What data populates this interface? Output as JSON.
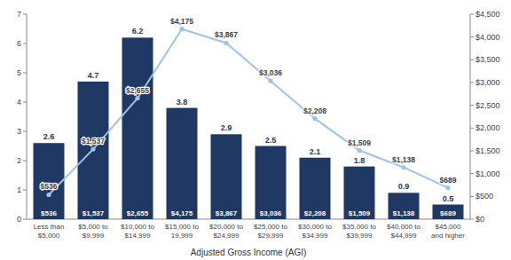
{
  "chart_data": {
    "type": "bar",
    "xlabel": "Adjusted Gross Income (AGI)",
    "categories": [
      "Less than\n$5,000",
      "$5,000 to\n$9,999",
      "$10,000 to\n$14,999",
      "$15,000 to\n19,999",
      "$20,000 to\n$24,999",
      "$25,000 to\n$29,999",
      "$30,000 to\n$34,999",
      "$35,000 to\n$39,999",
      "$40,000 to\n$44,999",
      "$45,000\nand higher"
    ],
    "series": [
      {
        "type": "bar",
        "color": "#1F3864",
        "values": [
          2.6,
          4.7,
          6.2,
          3.8,
          2.9,
          2.5,
          2.1,
          1.8,
          0.9,
          0.5
        ],
        "data_labels": true
      },
      {
        "type": "line",
        "axis": "y2",
        "color": "#9DC3E6",
        "marker": "circle",
        "line_style": "solid",
        "values": [
          536,
          1537,
          2655,
          4175,
          3867,
          3036,
          2208,
          1509,
          1138,
          689
        ],
        "value_labels": [
          "$536",
          "$1,537",
          "$2,655",
          "$4,175",
          "$3,867",
          "$3,036",
          "$2,208",
          "$1,509",
          "$1,138",
          "$689"
        ],
        "data_labels": true
      }
    ],
    "ylim": [
      0.0,
      7.0
    ],
    "yticks": [
      0,
      1,
      2,
      3,
      4,
      5,
      6,
      7
    ],
    "y2lim": [
      0,
      4500
    ],
    "y2ticks": [
      {
        "value": 0,
        "label": "$0"
      },
      {
        "value": 500,
        "label": "$500"
      },
      {
        "value": 1000,
        "label": "$1,000"
      },
      {
        "value": 1500,
        "label": "$1,500"
      },
      {
        "value": 2000,
        "label": "$2,000"
      },
      {
        "value": 2500,
        "label": "$2,500"
      },
      {
        "value": 3000,
        "label": "$3,000"
      },
      {
        "value": 3500,
        "label": "$3,500"
      },
      {
        "value": 4000,
        "label": "$4,000"
      },
      {
        "value": 4500,
        "label": "$4,500"
      }
    ],
    "grid": false
  }
}
